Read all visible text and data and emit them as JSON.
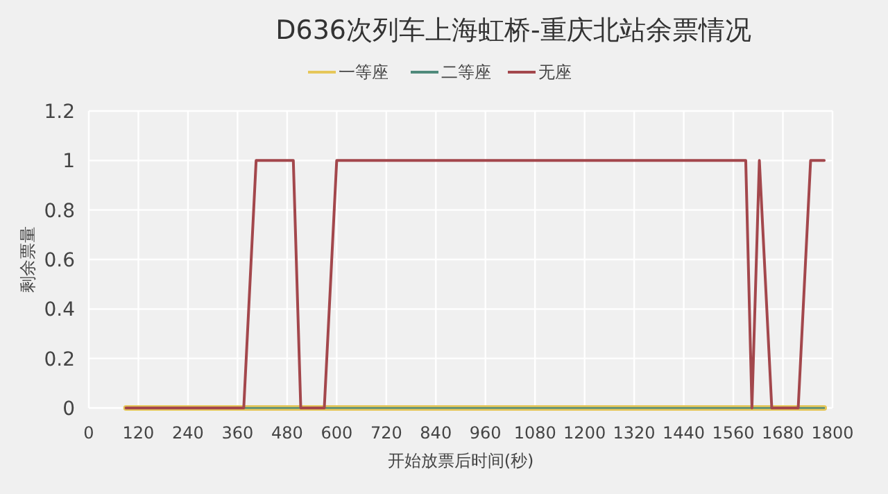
{
  "chart_data": {
    "type": "line",
    "title": "D636次列车上海虹桥-重庆北站余票情况",
    "xlabel": "开始放票后时间(秒)",
    "ylabel": "剩余票量",
    "xlim": [
      0,
      1800
    ],
    "xticks": [
      0,
      120,
      240,
      360,
      480,
      600,
      720,
      840,
      960,
      1080,
      1200,
      1320,
      1440,
      1560,
      1680,
      1800
    ],
    "ylim": [
      0,
      1.2
    ],
    "yticks": [
      0,
      0.2,
      0.4,
      0.6,
      0.8,
      1,
      1.2
    ],
    "grid": true,
    "legend": "top",
    "marker": "none",
    "line_style": "solid",
    "series": [
      {
        "name": "一等座",
        "color": "#e6c75a",
        "x": [
          90,
          1780
        ],
        "values": [
          0,
          0
        ]
      },
      {
        "name": "二等座",
        "color": "#4f8a7b",
        "x": [
          90,
          1780
        ],
        "values": [
          0,
          0
        ]
      },
      {
        "name": "无座",
        "color": "#a3474c",
        "x": [
          90,
          375,
          405,
          420,
          480,
          495,
          513,
          570,
          600,
          630,
          1590,
          1605,
          1623,
          1653,
          1717,
          1747,
          1760,
          1780
        ],
        "values": [
          0,
          0,
          1,
          1,
          1,
          1,
          0,
          0,
          1,
          1,
          1,
          0,
          1,
          0,
          0,
          1,
          1,
          1
        ]
      }
    ]
  }
}
